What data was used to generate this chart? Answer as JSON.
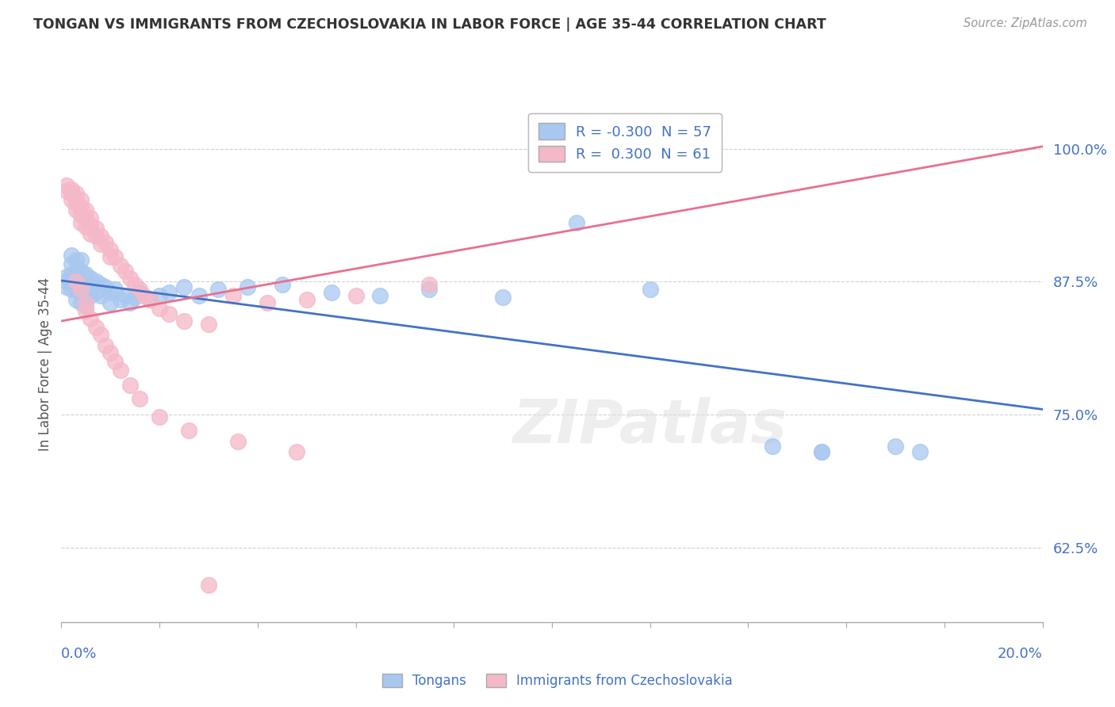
{
  "title": "TONGAN VS IMMIGRANTS FROM CZECHOSLOVAKIA IN LABOR FORCE | AGE 35-44 CORRELATION CHART",
  "source": "Source: ZipAtlas.com",
  "xlabel_bottom_left": "0.0%",
  "xlabel_bottom_right": "20.0%",
  "ylabel": "In Labor Force | Age 35-44",
  "ytick_labels": [
    "62.5%",
    "75.0%",
    "87.5%",
    "100.0%"
  ],
  "ytick_values": [
    0.625,
    0.75,
    0.875,
    1.0
  ],
  "xlim": [
    0.0,
    0.2
  ],
  "ylim": [
    0.555,
    1.04
  ],
  "blue_R": -0.3,
  "blue_N": 57,
  "pink_R": 0.3,
  "pink_N": 61,
  "blue_color": "#A8C8F0",
  "pink_color": "#F5B8C8",
  "blue_line_color": "#4472C4",
  "pink_line_color": "#E87090",
  "watermark_text": "ZIPatlas",
  "background_color": "#FFFFFF",
  "grid_color": "#CCCCCC",
  "title_color": "#333333",
  "axis_label_color": "#555555",
  "tick_color": "#4472C4",
  "source_color": "#999999",
  "blue_line_y0": 0.876,
  "blue_line_y1": 0.755,
  "pink_line_y0": 0.838,
  "pink_line_y1": 1.002,
  "blue_scatter_x": [
    0.001,
    0.001,
    0.001,
    0.002,
    0.002,
    0.002,
    0.002,
    0.002,
    0.003,
    0.003,
    0.003,
    0.003,
    0.003,
    0.004,
    0.004,
    0.004,
    0.004,
    0.004,
    0.005,
    0.005,
    0.005,
    0.005,
    0.006,
    0.006,
    0.006,
    0.007,
    0.007,
    0.008,
    0.008,
    0.009,
    0.01,
    0.01,
    0.011,
    0.012,
    0.013,
    0.014,
    0.015,
    0.016,
    0.018,
    0.02,
    0.022,
    0.025,
    0.028,
    0.032,
    0.038,
    0.045,
    0.055,
    0.065,
    0.075,
    0.09,
    0.105,
    0.12,
    0.145,
    0.155,
    0.17,
    0.155,
    0.175
  ],
  "blue_scatter_y": [
    0.88,
    0.875,
    0.87,
    0.9,
    0.892,
    0.882,
    0.875,
    0.868,
    0.895,
    0.885,
    0.878,
    0.868,
    0.858,
    0.895,
    0.885,
    0.875,
    0.865,
    0.855,
    0.882,
    0.872,
    0.862,
    0.852,
    0.878,
    0.87,
    0.862,
    0.875,
    0.865,
    0.872,
    0.862,
    0.87,
    0.865,
    0.855,
    0.868,
    0.858,
    0.862,
    0.855,
    0.86,
    0.865,
    0.858,
    0.862,
    0.865,
    0.87,
    0.862,
    0.868,
    0.87,
    0.872,
    0.865,
    0.862,
    0.868,
    0.86,
    0.93,
    0.868,
    0.72,
    0.715,
    0.72,
    0.715,
    0.715
  ],
  "pink_scatter_x": [
    0.001,
    0.001,
    0.002,
    0.002,
    0.002,
    0.003,
    0.003,
    0.003,
    0.003,
    0.004,
    0.004,
    0.004,
    0.004,
    0.005,
    0.005,
    0.005,
    0.006,
    0.006,
    0.006,
    0.007,
    0.007,
    0.008,
    0.008,
    0.009,
    0.01,
    0.01,
    0.011,
    0.012,
    0.013,
    0.014,
    0.015,
    0.016,
    0.017,
    0.018,
    0.02,
    0.022,
    0.025,
    0.03,
    0.035,
    0.042,
    0.05,
    0.06,
    0.075,
    0.003,
    0.004,
    0.005,
    0.005,
    0.006,
    0.007,
    0.008,
    0.009,
    0.01,
    0.011,
    0.012,
    0.014,
    0.016,
    0.02,
    0.026,
    0.036,
    0.048,
    0.03
  ],
  "pink_scatter_y": [
    0.965,
    0.96,
    0.962,
    0.958,
    0.952,
    0.958,
    0.952,
    0.948,
    0.942,
    0.952,
    0.945,
    0.938,
    0.93,
    0.942,
    0.935,
    0.927,
    0.935,
    0.928,
    0.92,
    0.925,
    0.918,
    0.918,
    0.91,
    0.912,
    0.905,
    0.898,
    0.898,
    0.89,
    0.885,
    0.878,
    0.872,
    0.868,
    0.862,
    0.858,
    0.85,
    0.845,
    0.838,
    0.835,
    0.862,
    0.855,
    0.858,
    0.862,
    0.872,
    0.875,
    0.868,
    0.855,
    0.848,
    0.84,
    0.832,
    0.825,
    0.815,
    0.808,
    0.8,
    0.792,
    0.778,
    0.765,
    0.748,
    0.735,
    0.725,
    0.715,
    0.59
  ]
}
